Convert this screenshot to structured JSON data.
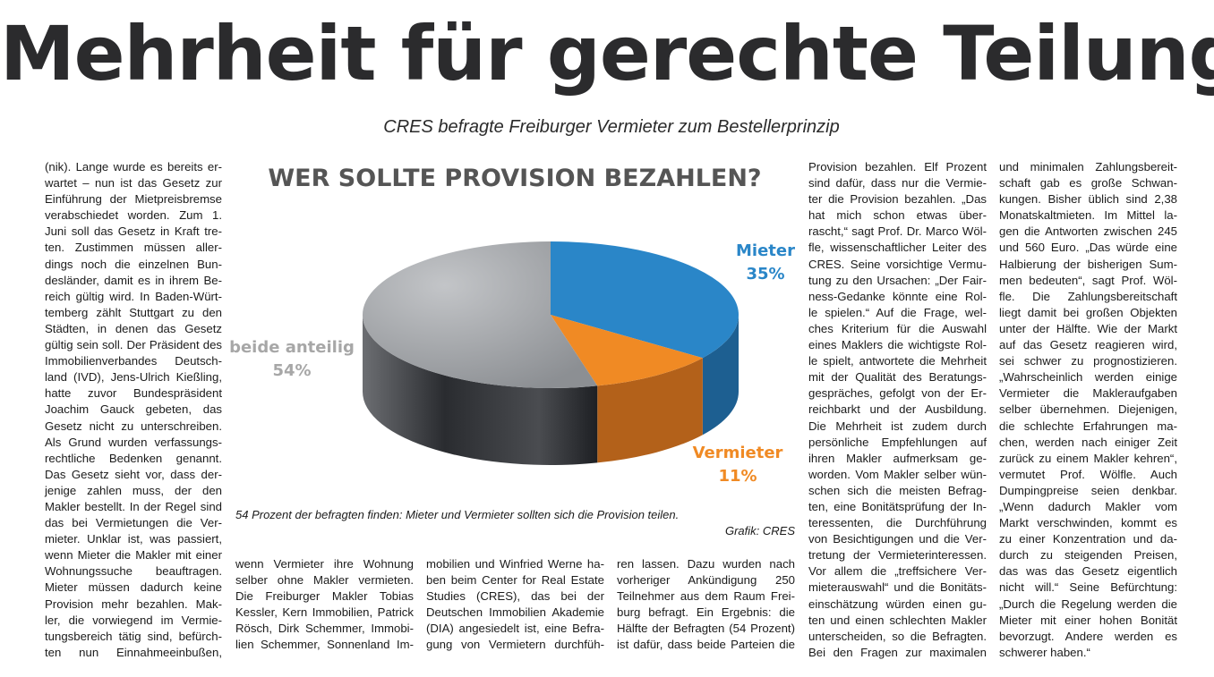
{
  "article": {
    "headline": "Mehrheit für gerechte Teilung",
    "subhead": "CRES befragte Freiburger Vermieter zum Bestellerprinzip",
    "column1": [
      "(nik). Lange wurde es bereits er-",
      "wartet – nun ist das Gesetz zur",
      "Einführung der Mietpreisbremse",
      "verabschiedet worden. Zum 1.",
      "Juni soll das Gesetz in Kraft tre-",
      "ten. Zustimmen müssen aller-",
      "dings noch die einzelnen Bun-",
      "desländer, damit es in ihrem Be-",
      "reich gültig wird. In Baden-Würt-",
      "temberg zählt Stuttgart zu den",
      "Städten, in denen das Gesetz",
      "gültig sein soll. Der Präsident des",
      "Immobilienverbandes Deutsch-",
      "land (IVD), Jens-Ulrich Kießling,",
      "hatte zuvor Bundespräsident",
      "Joachim Gauck gebeten, das",
      "Gesetz nicht zu unterschreiben.",
      "Als Grund wurden verfassungs-",
      "rechtliche Bedenken genannt.",
      "Das Gesetz sieht vor, dass der-",
      "jenige zahlen muss, der den",
      "Makler bestellt. In der Regel sind",
      "das bei Vermietungen die Ver-",
      "mieter. Unklar ist, was passiert,",
      "wenn Mieter die Makler mit einer",
      "Wohnungssuche beauftragen.",
      "Mieter müssen dadurch keine",
      "Provision mehr bezahlen. Mak-",
      "ler, die vorwiegend im Vermie-",
      "tungsbereich tätig sind, befürch-",
      "ten nun Einnahmeeinbußen,"
    ],
    "column2": [
      "wenn Vermieter ihre Wohnung",
      "selber ohne Makler vermieten.",
      "Die Freiburger Makler Tobias",
      "Kessler, Kern Immobilien, Patrick",
      "Rösch, Dirk Schemmer, Immobi-",
      "lien Schemmer, Sonnenland Im-"
    ],
    "column3": [
      "mobilien und Winfried Werne ha-",
      "ben beim Center for Real Estate",
      "Studies (CRES), das bei der",
      "Deutschen Immobilien Akademie",
      "(DIA) angesiedelt ist, eine Befra-",
      "gung von Vermietern durchfüh-"
    ],
    "column4": [
      "ren lassen. Dazu wurden nach",
      "vorheriger Ankündigung 250",
      "Teilnehmer aus dem Raum Frei-",
      "burg befragt. Ein Ergebnis: die",
      "Hälfte der Befragten (54 Prozent)",
      "ist dafür, dass beide Parteien die"
    ],
    "column5": [
      "Provision bezahlen. Elf Prozent",
      "sind dafür, dass nur die Vermie-",
      "ter die Provision bezahlen. „Das",
      "hat mich schon etwas über-",
      "rascht,“ sagt Prof. Dr. Marco Wöl-",
      "fle, wissenschaftlicher Leiter des",
      "CRES. Seine vorsichtige Vermu-",
      "tung zu den Ursachen: „Der Fair-",
      "ness-Gedanke könnte eine Rol-",
      "le spielen.“ Auf die Frage, wel-",
      "ches Kriterium für die Auswahl",
      "eines Maklers die wichtigste Rol-",
      "le spielt, antwortete die Mehrheit",
      "mit der Qualität des Beratungs-",
      "gespräches, gefolgt von der Er-",
      "reichbarkt und der Ausbildung.",
      "Die Mehrheit ist zudem durch",
      "persönliche Empfehlungen auf",
      "ihren Makler aufmerksam ge-",
      "worden. Vom Makler selber wün-",
      "schen sich die meisten Befrag-",
      "ten, eine Bonitätsprüfung der In-",
      "teressenten, die Durchführung",
      "von Besichtigungen und die Ver-",
      "tretung der Vermieterinteressen.",
      "Vor allem die „treffsichere Ver-",
      "mieterauswahl“ und die Bonitäts-",
      "einschätzung würden einen gu-",
      "ten und einen schlechten Makler",
      "unterscheiden, so die Befragten.",
      "Bei den Fragen zur maximalen"
    ],
    "column6": [
      "und minimalen Zahlungsbereit-",
      "schaft gab es große Schwan-",
      "kungen. Bisher üblich sind 2,38",
      "Monatskaltmieten. Im Mittel la-",
      "gen die Antworten zwischen 245",
      "und 560 Euro. „Das würde eine",
      "Halbierung der bisherigen Sum-",
      "men bedeuten“, sagt Prof. Wöl-",
      "fle.   Die Zahlungsbereitschaft",
      "liegt damit bei großen Objekten",
      "unter der Hälfte. Wie der Markt",
      "auf das Gesetz reagieren wird,",
      "sei schwer zu prognostizieren.",
      "„Wahrscheinlich werden einige",
      "Vermieter die Makleraufgaben",
      "selber übernehmen. Diejenigen,",
      "die schlechte Erfahrungen ma-",
      "chen, werden nach einiger Zeit",
      "zurück zu einem Makler kehren“,",
      "vermutet Prof. Wölfle. Auch",
      "Dumpingpreise seien denkbar.",
      "„Wenn dadurch Makler vom",
      "Markt verschwinden, kommt es",
      "zu einer Konzentration und da-",
      "durch zu steigenden Preisen,",
      "das was das Gesetz eigentlich",
      "nicht will.“ Seine Befürchtung:",
      "„Durch die Regelung werden die",
      "Mieter mit einer hohen Bonität",
      "bevorzugt. Andere werden es",
      "schwerer haben.“"
    ]
  },
  "figure": {
    "caption": "54 Prozent der befragten finden: Mieter und Vermieter sollten sich die Provision teilen.",
    "credit": "Grafik: CRES"
  },
  "chart_data": {
    "type": "pie",
    "title": "WER SOLLTE PROVISION BEZAHLEN?",
    "slices": [
      {
        "label": "Mieter",
        "value": 35,
        "value_label": "35%",
        "color": "#2a86c8",
        "side_color": "#1d5f91",
        "label_color": "#2a86c8"
      },
      {
        "label": "Vermieter",
        "value": 11,
        "value_label": "11%",
        "color": "#f08a24",
        "side_color": "#b3611a",
        "label_color": "#f08a24"
      },
      {
        "label": "beide anteilig",
        "value": 54,
        "value_label": "54%",
        "color": "#a2a4a8",
        "side_color": "#3a3c40",
        "label_color": "#a7a7a7"
      }
    ],
    "style": "3d"
  }
}
